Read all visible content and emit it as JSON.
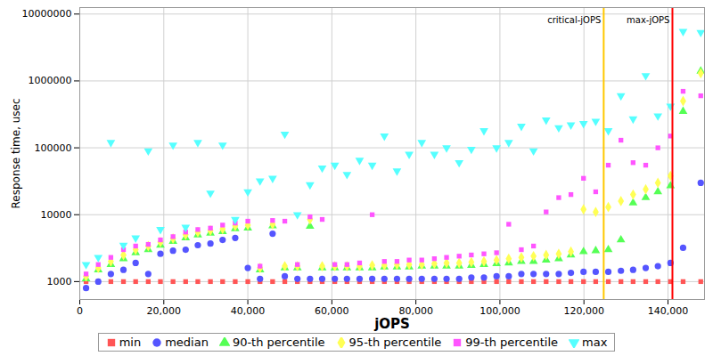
{
  "chart_data": {
    "type": "scatter",
    "x_label": "jOPS",
    "y_label": "Response time, usec",
    "log": "y",
    "grid": true,
    "legend": "bottom",
    "xlim": [
      0,
      148700
    ],
    "xticks": [
      0,
      {
        "value": 20000,
        "label": "20,000"
      },
      {
        "value": 40000,
        "label": "40,000"
      },
      {
        "value": 60000,
        "label": "60,000"
      },
      {
        "value": 80000,
        "label": "80,000"
      },
      {
        "value": 100000,
        "label": "100,000"
      },
      {
        "value": 120000,
        "label": "120,000"
      },
      {
        "value": 140000,
        "label": "140,000"
      }
    ],
    "ylim": [
      540,
      12500000
    ],
    "yticks": [
      1000,
      10000,
      100000,
      1000000,
      10000000
    ],
    "x": [
      1500,
      4400,
      7400,
      10400,
      13300,
      16300,
      19200,
      22200,
      25200,
      28100,
      31100,
      34000,
      37000,
      40000,
      42900,
      45900,
      48800,
      51800,
      54800,
      57700,
      60700,
      63600,
      66600,
      69600,
      72500,
      75500,
      78400,
      81400,
      84400,
      87300,
      90300,
      93200,
      96200,
      99200,
      102100,
      105100,
      108000,
      111000,
      114000,
      116900,
      119900,
      122800,
      125800,
      128800,
      131700,
      134700,
      137600,
      140600,
      143600,
      147800
    ],
    "series": [
      {
        "name": "min",
        "color": "#ff5555",
        "marker": "square",
        "values": [
          1000,
          1000,
          1000,
          1000,
          1000,
          1000,
          1000,
          1000,
          1000,
          1000,
          1000,
          1000,
          1000,
          1000,
          1000,
          1000,
          1000,
          1000,
          1000,
          1000,
          1000,
          1000,
          1000,
          1000,
          1000,
          1000,
          1000,
          1000,
          1000,
          1000,
          1000,
          1000,
          1000,
          1000,
          1000,
          1000,
          1000,
          1000,
          1000,
          1000,
          1000,
          1000,
          1000,
          1000,
          1000,
          1000,
          1000,
          1000,
          1000,
          1000
        ]
      },
      {
        "name": "median",
        "color": "#5555ff",
        "marker": "circle",
        "values": [
          800,
          1000,
          1300,
          1500,
          1900,
          1300,
          2600,
          2900,
          3000,
          3500,
          3700,
          4200,
          4500,
          1600,
          1100,
          5200,
          1200,
          1100,
          1100,
          1100,
          1100,
          1100,
          1100,
          1100,
          1100,
          1100,
          1100,
          1100,
          1100,
          1100,
          1100,
          1150,
          1150,
          1200,
          1200,
          1300,
          1300,
          1300,
          1300,
          1350,
          1400,
          1400,
          1400,
          1450,
          1500,
          1600,
          1700,
          1900,
          3200,
          30000
        ]
      },
      {
        "name": "90-th percentile",
        "color": "#55ff55",
        "marker": "triangle",
        "values": [
          1100,
          1500,
          1800,
          2200,
          2700,
          3000,
          3500,
          4000,
          4500,
          5000,
          5300,
          5600,
          6200,
          6300,
          1500,
          6800,
          1600,
          1600,
          6700,
          1600,
          1600,
          1600,
          1600,
          1600,
          1650,
          1650,
          1650,
          1700,
          1700,
          1700,
          1700,
          1750,
          1800,
          1850,
          1900,
          2000,
          2000,
          2100,
          2200,
          2500,
          2800,
          2900,
          3000,
          4200,
          15000,
          18000,
          22000,
          27000,
          350000,
          1400000
        ]
      },
      {
        "name": "95-th percentile",
        "color": "#ffff55",
        "marker": "diamond",
        "values": [
          1200,
          1600,
          2000,
          2500,
          3000,
          3400,
          3900,
          4400,
          5000,
          5500,
          5800,
          6100,
          6800,
          7000,
          1600,
          7200,
          1700,
          1700,
          8500,
          1700,
          1700,
          1700,
          1700,
          1750,
          1750,
          1800,
          1800,
          1800,
          1850,
          1900,
          1900,
          1950,
          2000,
          2100,
          2200,
          2300,
          2400,
          2500,
          2600,
          2800,
          12000,
          11000,
          13000,
          16000,
          20000,
          24000,
          30000,
          38000,
          500000,
          1300000
        ]
      },
      {
        "name": "99-th percentile",
        "color": "#ff55ff",
        "marker": "square",
        "values": [
          1300,
          1800,
          2300,
          3000,
          3400,
          3600,
          4200,
          4700,
          5500,
          6000,
          6300,
          7000,
          7500,
          8000,
          1700,
          8200,
          8000,
          1800,
          9300,
          8500,
          1800,
          1800,
          1900,
          10000,
          2000,
          2000,
          2100,
          2100,
          2200,
          2300,
          2400,
          2500,
          2600,
          2700,
          7200,
          3000,
          3400,
          11000,
          18000,
          20000,
          35000,
          22000,
          55000,
          130000,
          60000,
          55000,
          100000,
          150000,
          700000,
          600000
        ]
      },
      {
        "name": "max",
        "color": "#55ffff",
        "marker": "triangle-down",
        "values": [
          1800,
          2300,
          120000,
          3500,
          4500,
          90000,
          6000,
          110000,
          6500,
          120000,
          21000,
          110000,
          8500,
          22000,
          32000,
          35000,
          160000,
          10000,
          28000,
          50000,
          55000,
          40000,
          65000,
          55000,
          150000,
          45000,
          80000,
          120000,
          80000,
          100000,
          60000,
          95000,
          180000,
          100000,
          120000,
          210000,
          90000,
          260000,
          200000,
          220000,
          230000,
          250000,
          180000,
          600000,
          270000,
          1200000,
          300000,
          420000,
          5500000,
          5300000
        ]
      }
    ],
    "annotations": [
      {
        "x": 124700,
        "label": "critical-jOPS",
        "color": "#ffc800"
      },
      {
        "x": 141060,
        "label": "max-jOPS",
        "color": "#ff0000"
      }
    ]
  }
}
